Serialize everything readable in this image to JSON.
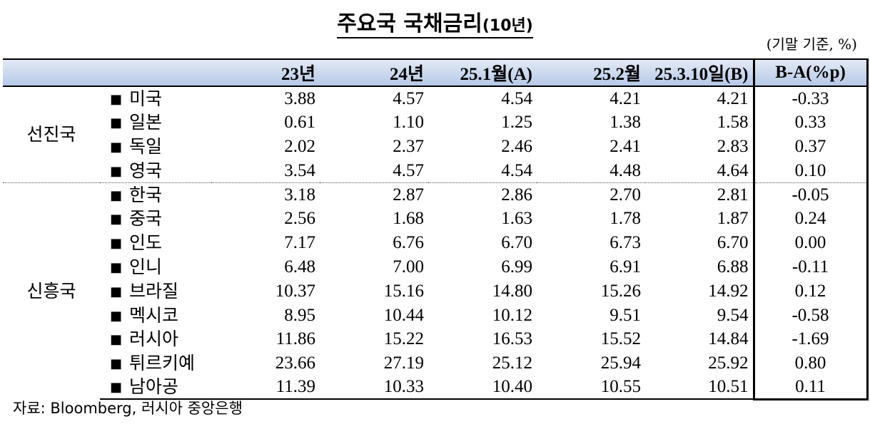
{
  "title": {
    "main": "주요국 국채금리",
    "suffix": "(10년)"
  },
  "unit_note": "(기말 기준, %)",
  "columns": [
    "23년",
    "24년",
    "25.1월(A)",
    "25.2월",
    "25.3.10일(B)",
    "B-A(%p)"
  ],
  "groups": {
    "advanced": "선진국",
    "emerging": "신흥국"
  },
  "bullet": "■",
  "rows": [
    {
      "name": "미국",
      "values": [
        "3.88",
        "4.57",
        "4.54",
        "4.21",
        "4.21",
        "-0.33"
      ]
    },
    {
      "name": "일본",
      "values": [
        "0.61",
        "1.10",
        "1.25",
        "1.38",
        "1.58",
        "0.33"
      ]
    },
    {
      "name": "독일",
      "values": [
        "2.02",
        "2.37",
        "2.46",
        "2.41",
        "2.83",
        "0.37"
      ]
    },
    {
      "name": "영국",
      "values": [
        "3.54",
        "4.57",
        "4.54",
        "4.48",
        "4.64",
        "0.10"
      ]
    },
    {
      "name": "한국",
      "values": [
        "3.18",
        "2.87",
        "2.86",
        "2.70",
        "2.81",
        "-0.05"
      ]
    },
    {
      "name": "중국",
      "values": [
        "2.56",
        "1.68",
        "1.63",
        "1.78",
        "1.87",
        "0.24"
      ]
    },
    {
      "name": "인도",
      "values": [
        "7.17",
        "6.76",
        "6.70",
        "6.73",
        "6.70",
        "0.00"
      ]
    },
    {
      "name": "인니",
      "values": [
        "6.48",
        "7.00",
        "6.99",
        "6.91",
        "6.88",
        "-0.11"
      ]
    },
    {
      "name": "브라질",
      "values": [
        "10.37",
        "15.16",
        "14.80",
        "15.26",
        "14.92",
        "0.12"
      ]
    },
    {
      "name": "멕시코",
      "values": [
        "8.95",
        "10.44",
        "10.12",
        "9.51",
        "9.54",
        "-0.58"
      ]
    },
    {
      "name": "러시아",
      "values": [
        "11.86",
        "15.22",
        "16.53",
        "15.52",
        "14.84",
        "-1.69"
      ]
    },
    {
      "name": "튀르키예",
      "values": [
        "23.66",
        "27.19",
        "25.12",
        "25.94",
        "25.92",
        "0.80"
      ]
    },
    {
      "name": "남아공",
      "values": [
        "11.39",
        "10.33",
        "10.40",
        "10.55",
        "10.51",
        "0.11"
      ]
    }
  ],
  "source": "자료: Bloomberg, 러시아 중앙은행"
}
